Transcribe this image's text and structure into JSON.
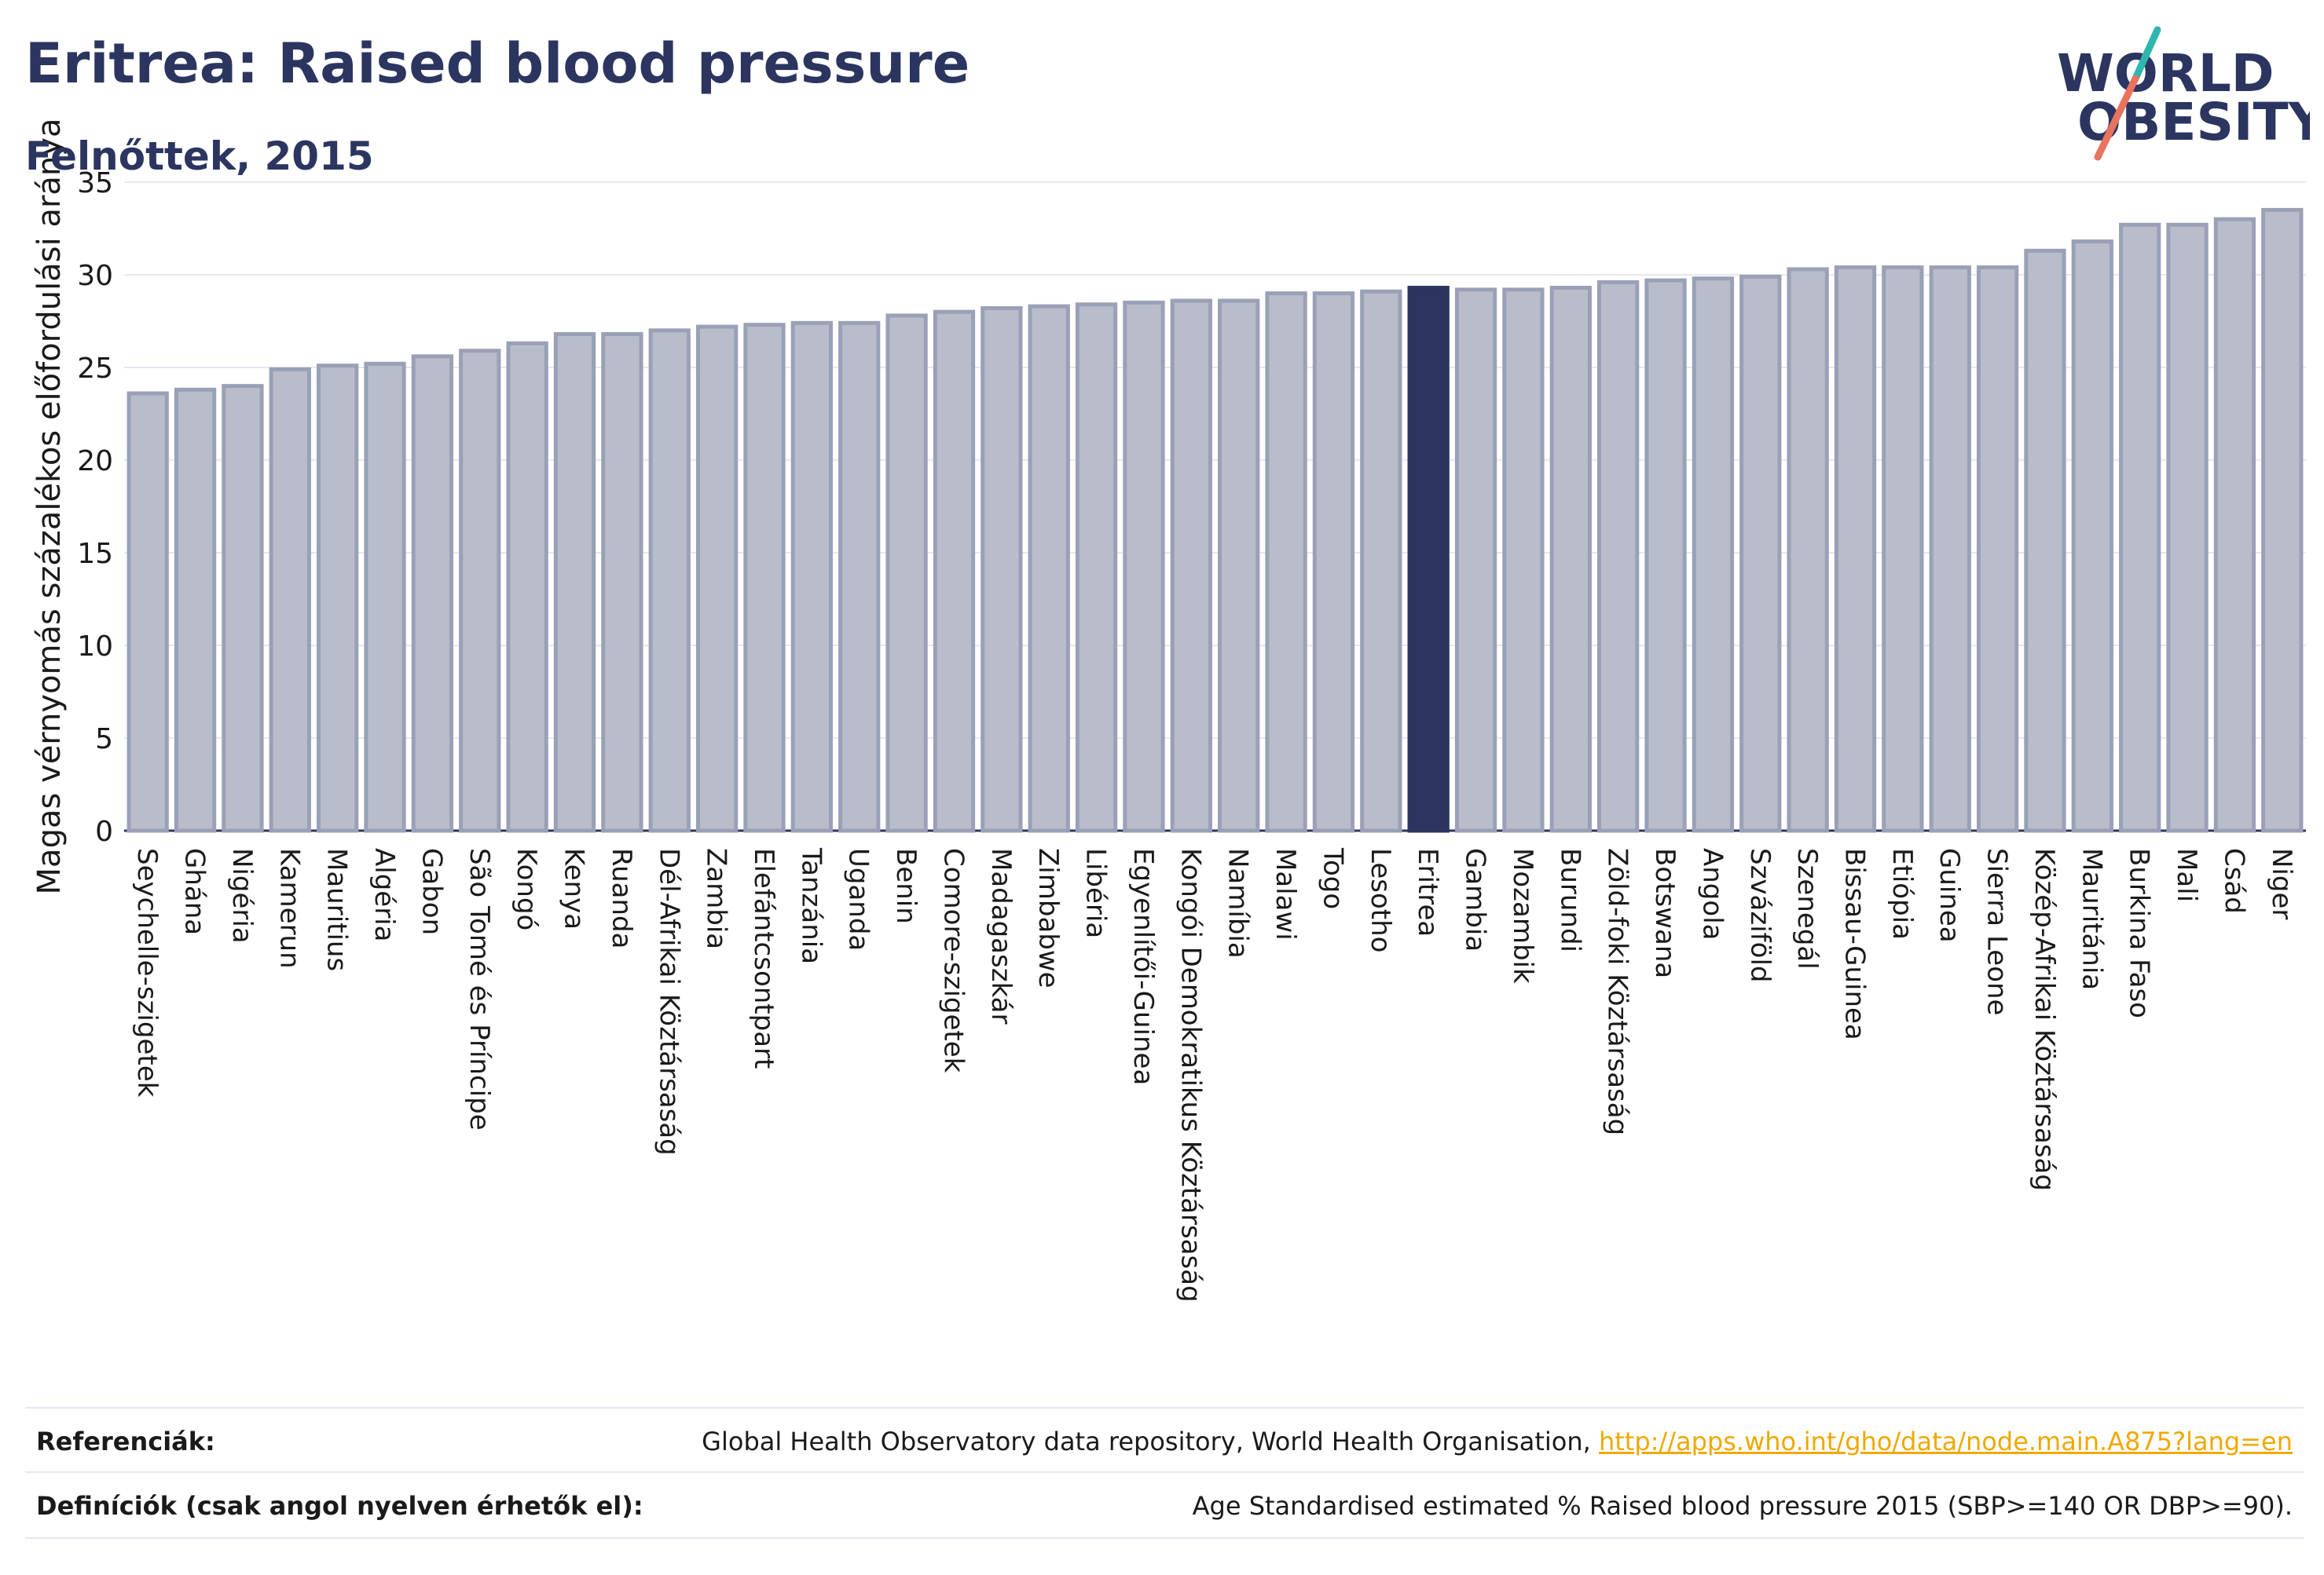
{
  "header": {
    "title": "Eritrea: Raised blood pressure",
    "subtitle": "Felnőttek, 2015"
  },
  "logo": {
    "line1": "WORLD",
    "line2": "OBESITY"
  },
  "colors": {
    "title": "#2b3560",
    "bar": "#b9bdcb",
    "bar_border": "#9aa0b6",
    "highlight": "#2b3560",
    "grid": "#e6e8ef",
    "link": "#f0a800",
    "logo_teal": "#2fb7ad",
    "logo_coral": "#e8735f"
  },
  "chart_data": {
    "type": "bar",
    "title": "Eritrea: Raised blood pressure",
    "subtitle": "Felnőttek, 2015",
    "ylabel": "Magas vérnyomás százalékos előfordulási aránya",
    "xlabel": "",
    "ylim": [
      0,
      35
    ],
    "yticks": [
      0,
      5,
      10,
      15,
      20,
      25,
      30,
      35
    ],
    "grid": true,
    "highlight": "Eritrea",
    "categories": [
      "Seychelle-szigetek",
      "Ghána",
      "Nigéria",
      "Kamerun",
      "Mauritius",
      "Algéria",
      "Gabon",
      "São Tomé és Príncipe",
      "Kongó",
      "Kenya",
      "Ruanda",
      "Dél-Afrikai Köztársaság",
      "Zambia",
      "Elefántcsontpart",
      "Tanzánia",
      "Uganda",
      "Benin",
      "Comore-szigetek",
      "Madagaszkár",
      "Zimbabwe",
      "Libéria",
      "Egyenlítői-Guinea",
      "Kongói Demokratikus Köztársaság",
      "Namíbia",
      "Malawi",
      "Togo",
      "Lesotho",
      "Eritrea",
      "Gambia",
      "Mozambik",
      "Burundi",
      "Zöld-foki Köztársaság",
      "Botswana",
      "Angola",
      "Szváziföld",
      "Szenegál",
      "Bissau-Guinea",
      "Etiópia",
      "Guinea",
      "Sierra Leone",
      "Közép-Afrikai Köztársaság",
      "Mauritánia",
      "Burkina Faso",
      "Mali",
      "Csád",
      "Niger"
    ],
    "values": [
      23.6,
      23.8,
      24.0,
      24.9,
      25.1,
      25.2,
      25.6,
      25.9,
      26.3,
      26.8,
      26.8,
      27.0,
      27.2,
      27.3,
      27.4,
      27.4,
      27.8,
      28.0,
      28.2,
      28.3,
      28.4,
      28.5,
      28.6,
      28.6,
      29.0,
      29.0,
      29.1,
      29.3,
      29.2,
      29.2,
      29.3,
      29.6,
      29.7,
      29.8,
      29.9,
      30.3,
      30.4,
      30.4,
      30.4,
      30.4,
      31.3,
      31.8,
      32.7,
      32.7,
      33.0,
      33.5
    ]
  },
  "footer": {
    "references_label": "Referenciák:",
    "references_text": "Global Health Observatory data repository, World Health Organisation, ",
    "references_link": "http://apps.who.int/gho/data/node.main.A875?lang=en",
    "definitions_label": "Definíciók (csak angol nyelven érhetők el):",
    "definitions_text": "Age Standardised estimated % Raised blood pressure 2015 (SBP>=140 OR DBP>=90)."
  }
}
